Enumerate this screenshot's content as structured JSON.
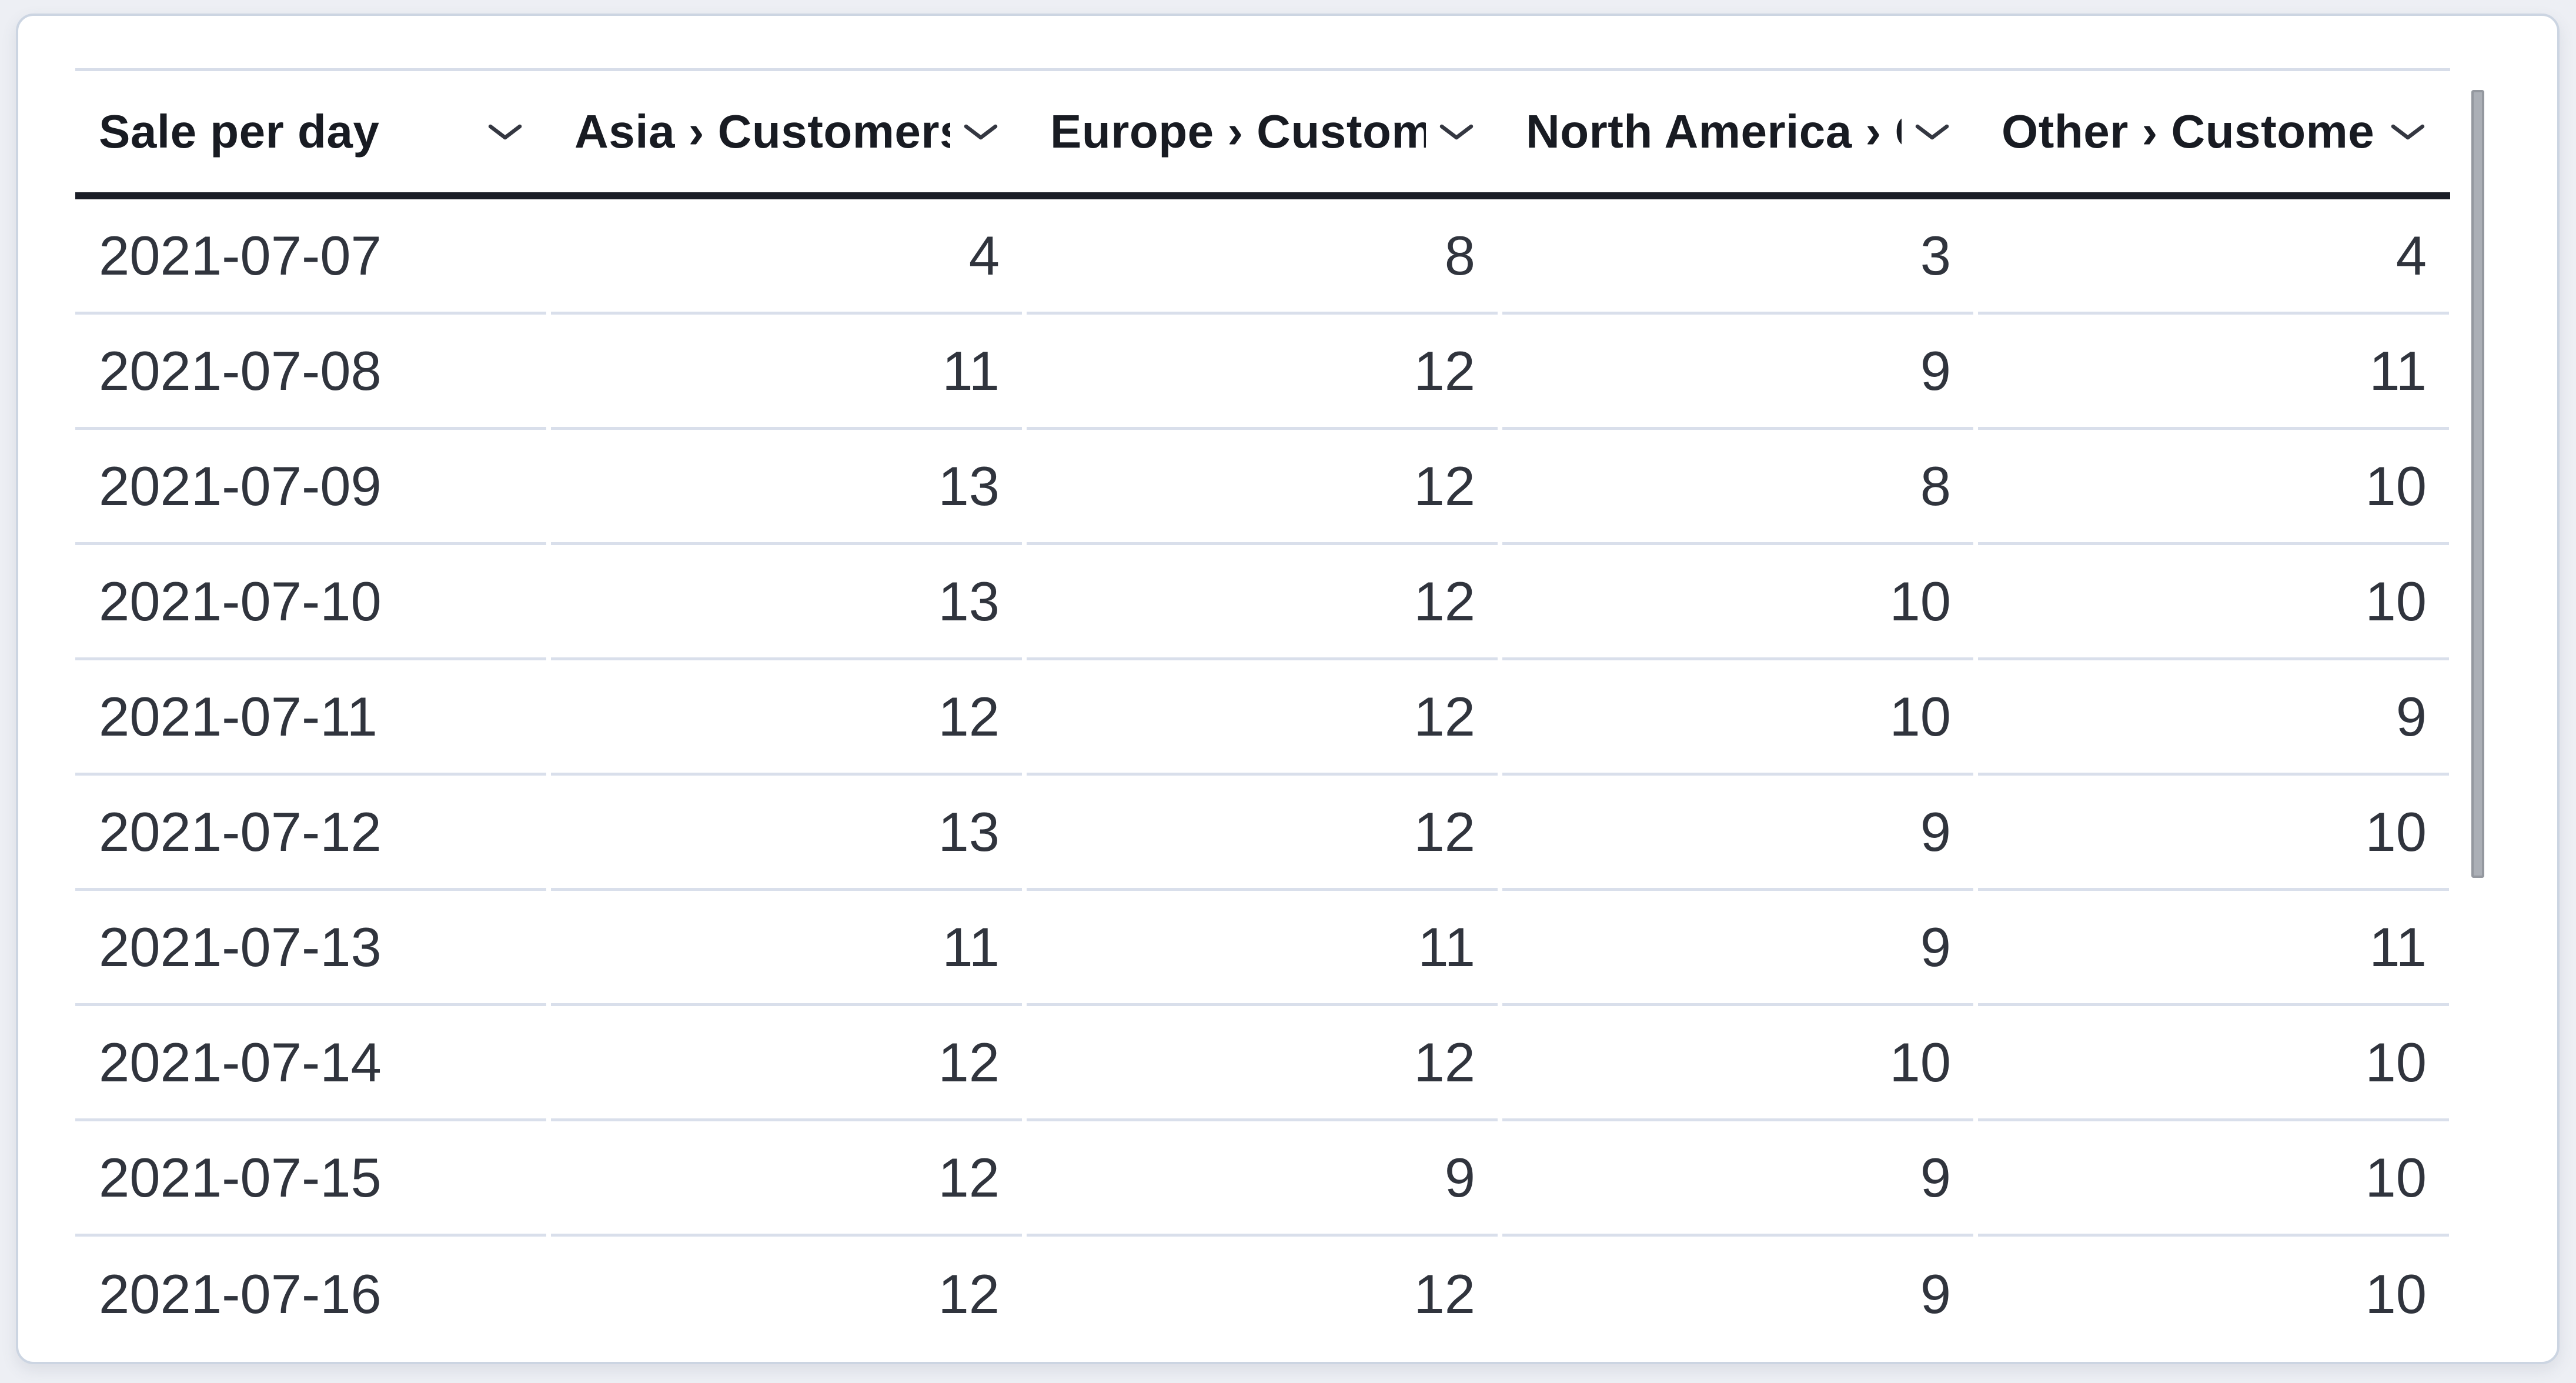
{
  "panel": {
    "kind": "data-table"
  },
  "table": {
    "columns": [
      {
        "id": "date",
        "label": "Sale per day",
        "align": "left"
      },
      {
        "id": "asia",
        "label": "Asia › Customers",
        "align": "right"
      },
      {
        "id": "europe",
        "label": "Europe › Customers",
        "align": "right"
      },
      {
        "id": "north_america",
        "label": "North America › Customers",
        "align": "right"
      },
      {
        "id": "other",
        "label": "Other › Customers",
        "align": "right"
      }
    ],
    "rows": [
      {
        "date": "2021-07-07",
        "values": [
          4,
          8,
          3,
          4
        ]
      },
      {
        "date": "2021-07-08",
        "values": [
          11,
          12,
          9,
          11
        ]
      },
      {
        "date": "2021-07-09",
        "values": [
          13,
          12,
          8,
          10
        ]
      },
      {
        "date": "2021-07-10",
        "values": [
          13,
          12,
          10,
          10
        ]
      },
      {
        "date": "2021-07-11",
        "values": [
          12,
          12,
          10,
          9
        ]
      },
      {
        "date": "2021-07-12",
        "values": [
          13,
          12,
          9,
          10
        ]
      },
      {
        "date": "2021-07-13",
        "values": [
          11,
          11,
          9,
          11
        ]
      },
      {
        "date": "2021-07-14",
        "values": [
          12,
          12,
          10,
          10
        ]
      },
      {
        "date": "2021-07-15",
        "values": [
          12,
          9,
          9,
          10
        ]
      },
      {
        "date": "2021-07-16",
        "values": [
          12,
          12,
          9,
          10
        ]
      }
    ]
  },
  "icons": {
    "header_sort": "chevron-down-icon"
  },
  "scrollbar": {
    "visible": true,
    "orientation": "vertical"
  },
  "colors": {
    "page_background": "#edeff4",
    "panel_background": "#ffffff",
    "panel_border": "#ccd5e2",
    "header_text": "#181b22",
    "header_divider": "#1b1e27",
    "row_divider": "#d9dfeb",
    "body_text": "#30343d",
    "scrollbar_thumb": "#abafb6"
  }
}
